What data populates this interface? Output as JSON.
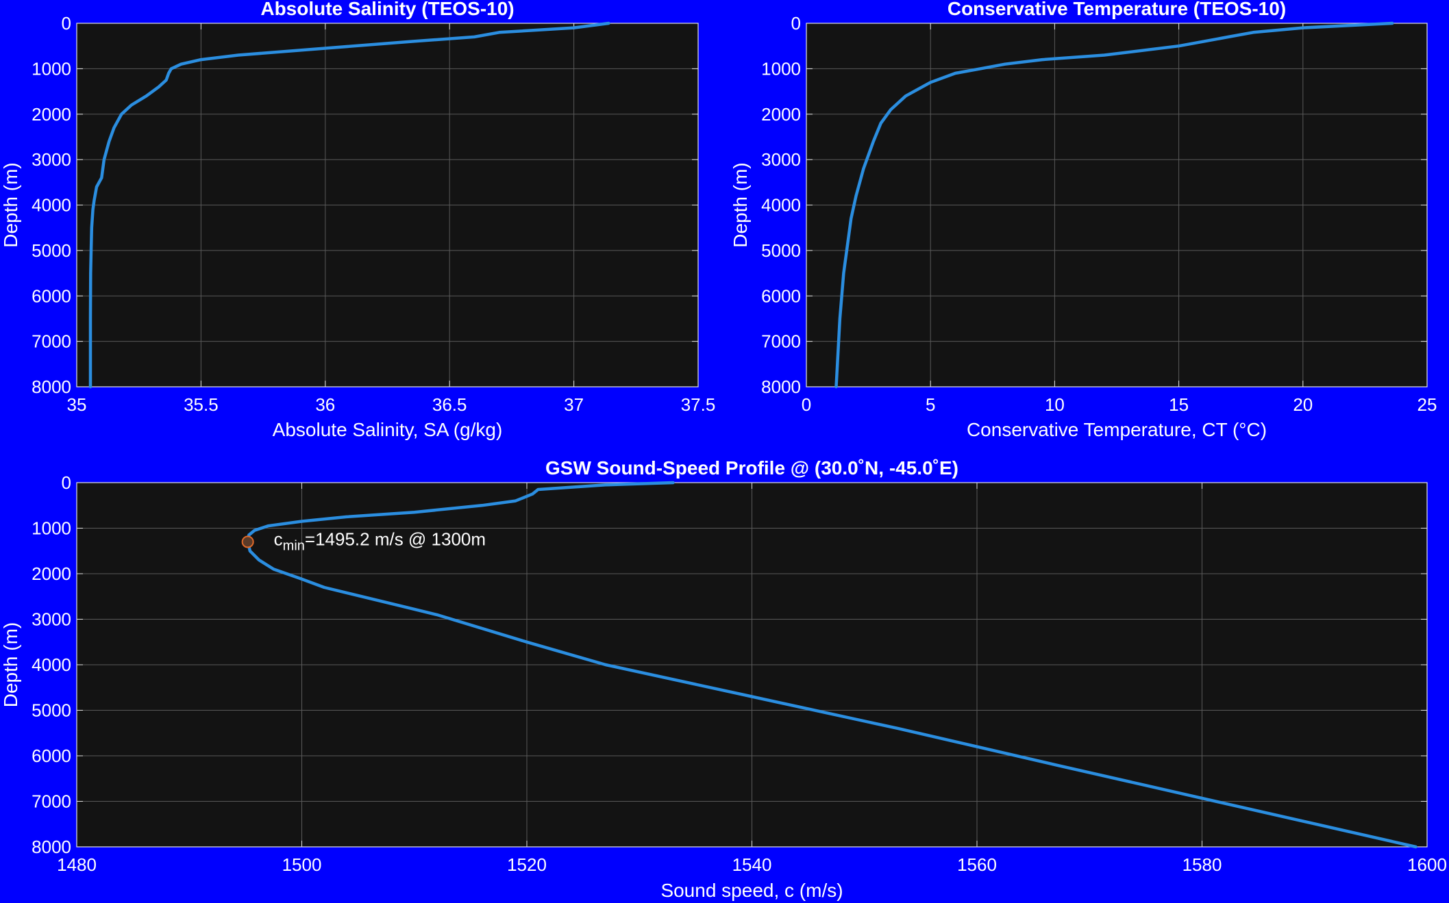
{
  "figure": {
    "background": "#0000ff",
    "axes_background": "#131313",
    "line_color": "#2b8ee0",
    "marker_edge": "#e06a2a"
  },
  "chart_data": [
    {
      "type": "line",
      "title": "Absolute Salinity (TEOS-10)",
      "xlabel": "Absolute Salinity, SA (g/kg)",
      "ylabel": "Depth (m)",
      "xlim": [
        35,
        37.5
      ],
      "ylim": [
        8000,
        0
      ],
      "y_reversed": true,
      "xticks": [
        "35",
        "35.5",
        "36",
        "36.5",
        "37",
        "37.5"
      ],
      "yticks": [
        "0",
        "1000",
        "2000",
        "3000",
        "4000",
        "5000",
        "6000",
        "7000",
        "8000"
      ],
      "grid": true,
      "series": [
        {
          "x": [
            37.14,
            37.0,
            36.7,
            36.6,
            36.35,
            36.0,
            35.65,
            35.5,
            35.42,
            35.38,
            35.37,
            35.36,
            35.33,
            35.28,
            35.22,
            35.18,
            35.15,
            35.13,
            35.11,
            35.1,
            35.08,
            35.07,
            35.065,
            35.06,
            35.058,
            35.056,
            35.055,
            35.055
          ],
          "y": [
            0,
            100,
            200,
            300,
            400,
            550,
            700,
            800,
            900,
            1000,
            1100,
            1250,
            1400,
            1600,
            1800,
            2000,
            2300,
            2600,
            3000,
            3400,
            3600,
            3900,
            4100,
            4500,
            5000,
            5500,
            6500,
            8000
          ]
        }
      ]
    },
    {
      "type": "line",
      "title": "Conservative Temperature (TEOS-10)",
      "xlabel": "Conservative Temperature, CT (°C)",
      "ylabel": "Depth (m)",
      "xlim": [
        0,
        25
      ],
      "ylim": [
        8000,
        0
      ],
      "y_reversed": true,
      "xticks": [
        "0",
        "5",
        "10",
        "15",
        "20",
        "25"
      ],
      "yticks": [
        "0",
        "1000",
        "2000",
        "3000",
        "4000",
        "5000",
        "6000",
        "7000",
        "8000"
      ],
      "grid": true,
      "series": [
        {
          "x": [
            23.6,
            20.0,
            18.0,
            17.0,
            15.0,
            12.0,
            9.5,
            8.0,
            7.0,
            6.0,
            5.0,
            4.0,
            3.4,
            3.0,
            2.7,
            2.3,
            2.0,
            1.8,
            1.65,
            1.5,
            1.35,
            1.2
          ],
          "y": [
            0,
            100,
            200,
            300,
            500,
            700,
            800,
            900,
            1000,
            1100,
            1300,
            1600,
            1900,
            2200,
            2600,
            3200,
            3800,
            4300,
            4900,
            5500,
            6500,
            8000
          ]
        }
      ]
    },
    {
      "type": "line",
      "title": "GSW  Sound-Speed  Profile  @  (30.0˚N,  -45.0˚E)",
      "xlabel": "Sound speed, c (m/s)",
      "ylabel": "Depth (m)",
      "xlim": [
        1480,
        1600
      ],
      "ylim": [
        8000,
        0
      ],
      "y_reversed": true,
      "xticks": [
        "1480",
        "1500",
        "1520",
        "1540",
        "1560",
        "1580",
        "1600"
      ],
      "yticks": [
        "0",
        "1000",
        "2000",
        "3000",
        "4000",
        "5000",
        "6000",
        "7000",
        "8000"
      ],
      "grid": true,
      "series": [
        {
          "x": [
            1533.0,
            1527.0,
            1521.0,
            1520.5,
            1519.0,
            1516.0,
            1510.0,
            1504.0,
            1500.0,
            1497.0,
            1495.8,
            1495.3,
            1495.2,
            1495.4,
            1496.2,
            1497.5,
            1499.8,
            1502.0,
            1507.0,
            1512.0,
            1520.0,
            1527.0,
            1540.0,
            1553.0,
            1567.0,
            1583.0,
            1599.0
          ],
          "y": [
            0,
            50,
            150,
            250,
            400,
            500,
            650,
            750,
            850,
            950,
            1050,
            1150,
            1300,
            1500,
            1700,
            1900,
            2100,
            2300,
            2600,
            2900,
            3500,
            4000,
            4700,
            5400,
            6200,
            7100,
            8000
          ]
        }
      ],
      "marker": {
        "x": 1495.2,
        "y": 1300
      },
      "annotation": {
        "prefix": "c",
        "subscript": "min",
        "text": "=1495.2  m/s  @  1300m"
      }
    }
  ]
}
